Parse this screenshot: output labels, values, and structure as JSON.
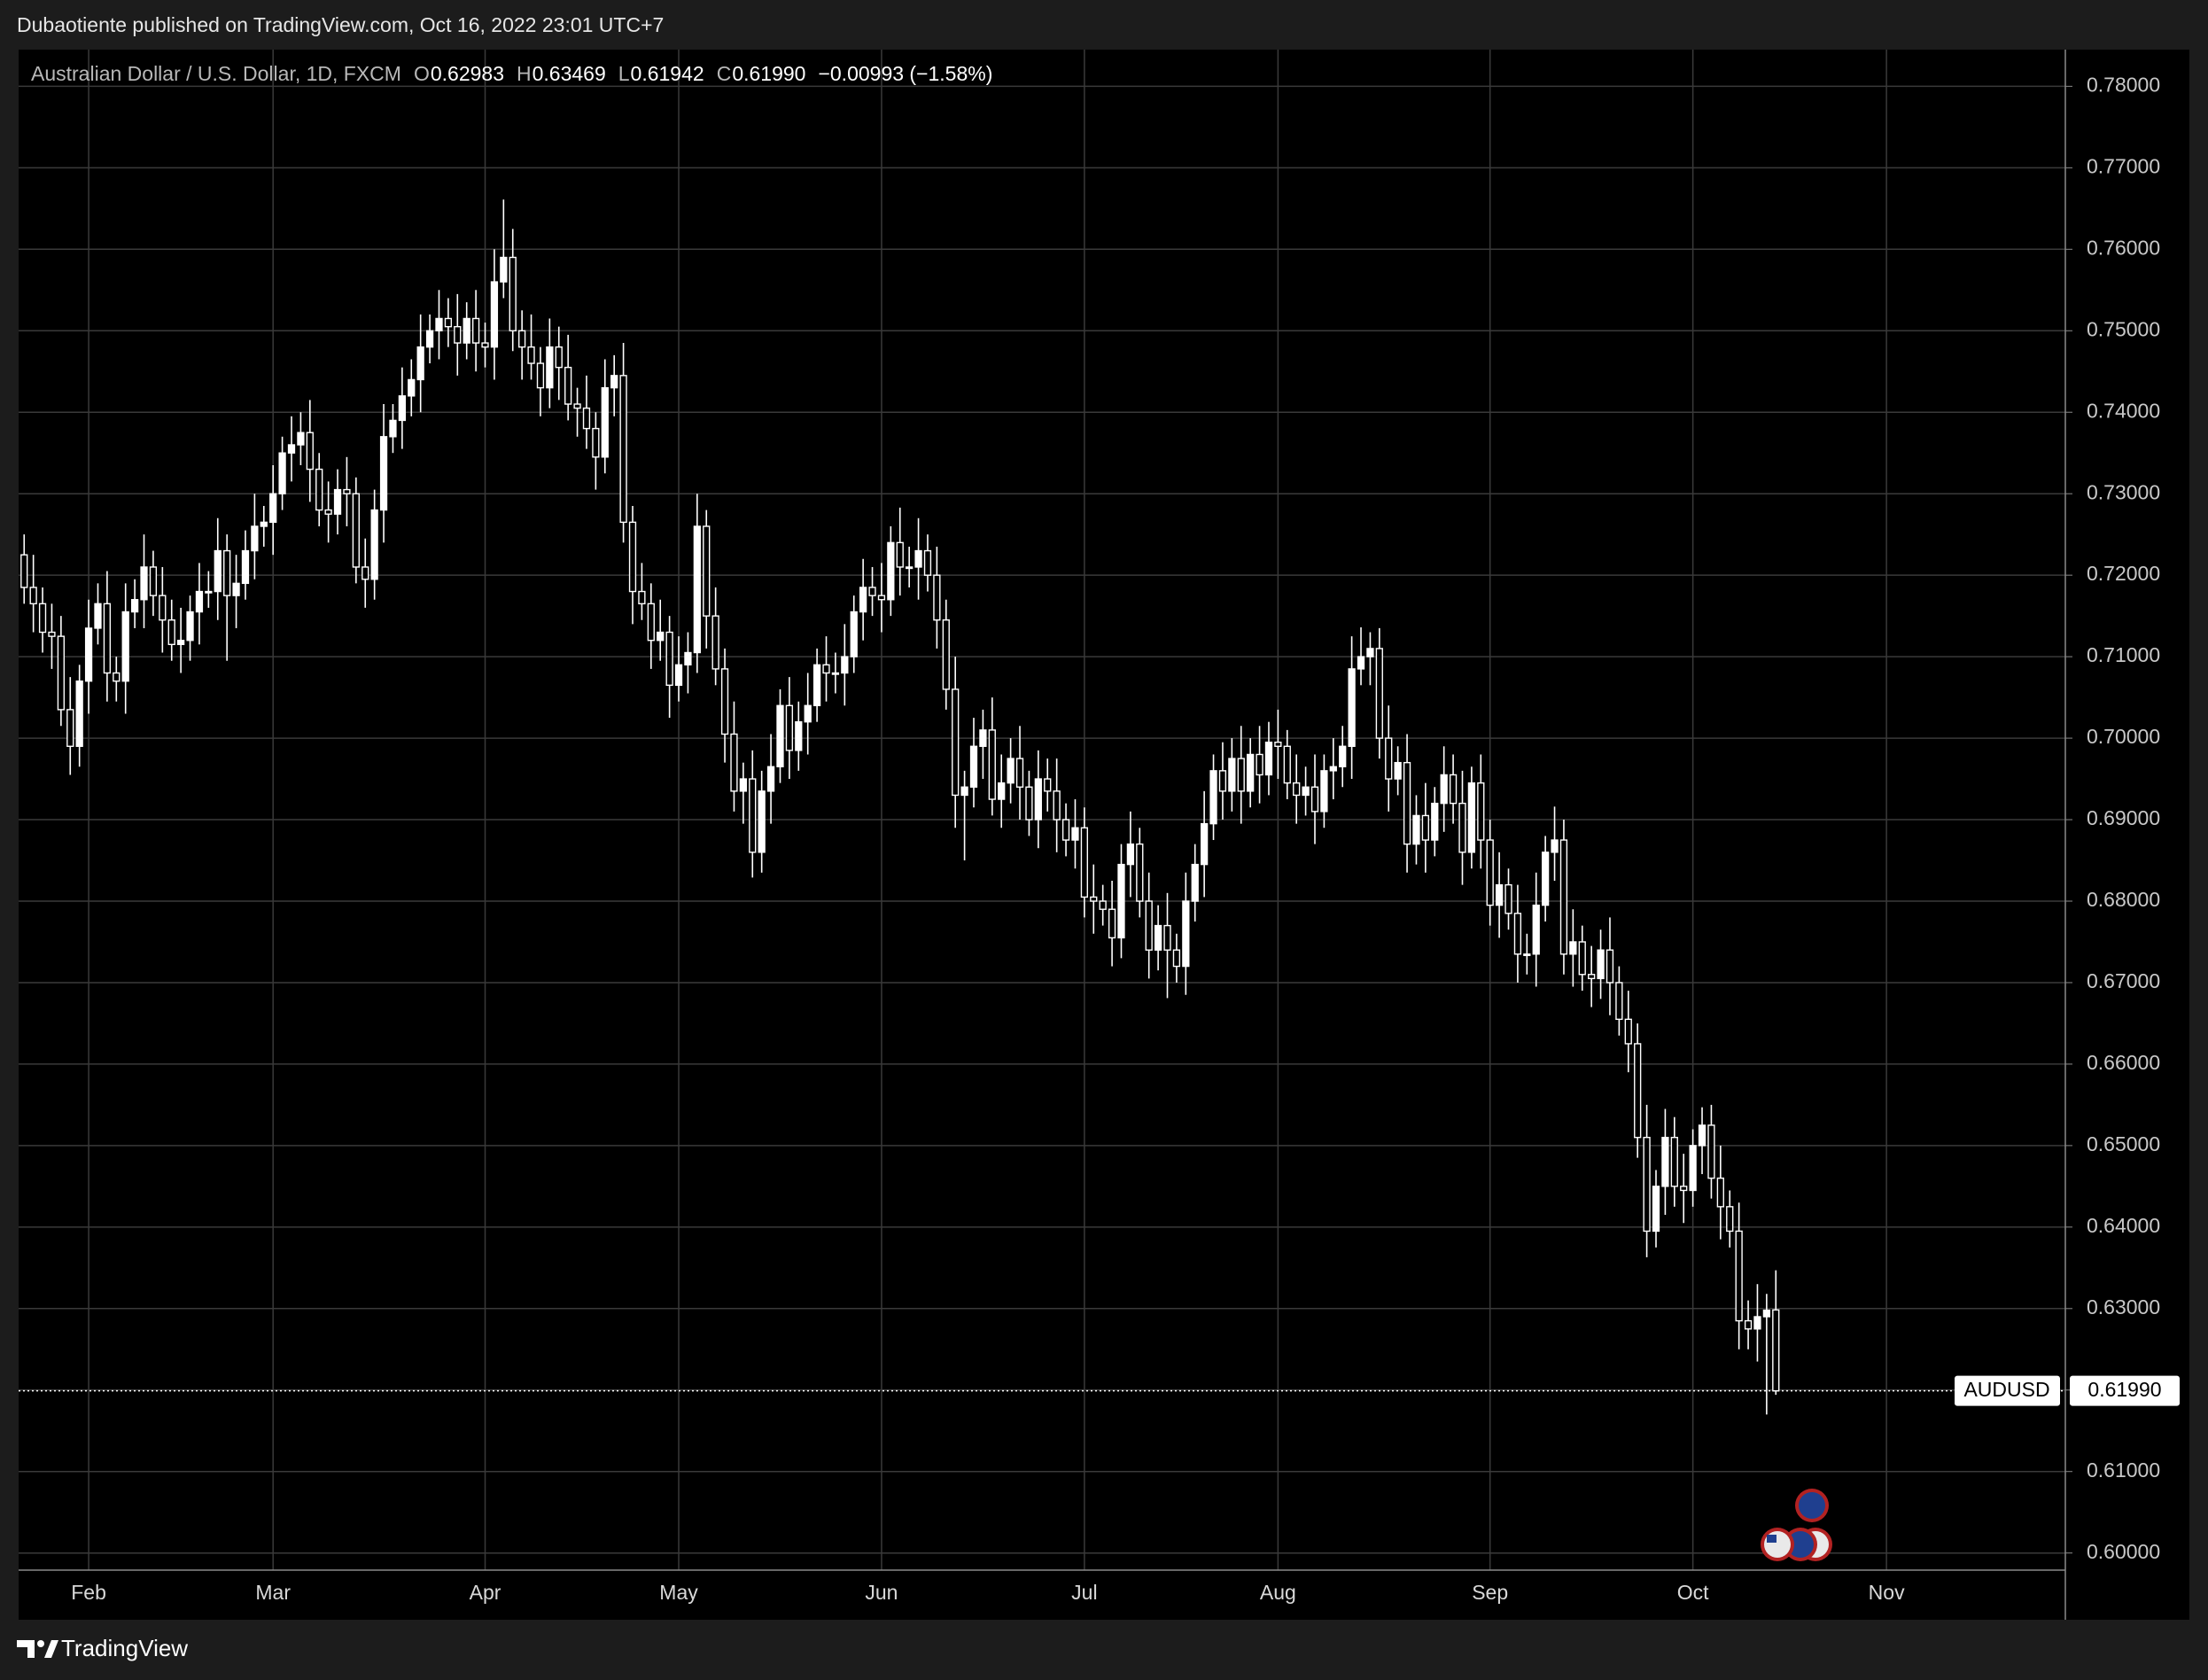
{
  "header": {
    "published": "Dubaotiente published on TradingView.com, Oct 16, 2022 23:01 UTC+7"
  },
  "footer": {
    "brand": "TradingView"
  },
  "chart_data": {
    "type": "candlestick",
    "title": "Australian Dollar / U.S. Dollar, 1D, FXCM",
    "legend": [
      {
        "label": "O",
        "value": "0.62983"
      },
      {
        "label": "H",
        "value": "0.63469"
      },
      {
        "label": "L",
        "value": "0.61942"
      },
      {
        "label": "C",
        "value": "0.61990"
      }
    ],
    "change": "−0.00993 (−1.58%)",
    "last_price": {
      "symbol": "AUDUSD",
      "value": 0.6199,
      "label": "0.61990"
    },
    "up_color": "#ffffff",
    "down_color": "#000000",
    "wick_color": "#ffffff",
    "grid": true,
    "ylim": [
      0.5979,
      0.7845
    ],
    "yticks": [
      {
        "value": 0.6,
        "label": "0.60000"
      },
      {
        "value": 0.61,
        "label": "0.61000"
      },
      {
        "value": 0.62,
        "label": "0.62000"
      },
      {
        "value": 0.63,
        "label": "0.63000"
      },
      {
        "value": 0.64,
        "label": "0.64000"
      },
      {
        "value": 0.65,
        "label": "0.65000"
      },
      {
        "value": 0.66,
        "label": "0.66000"
      },
      {
        "value": 0.67,
        "label": "0.67000"
      },
      {
        "value": 0.68,
        "label": "0.68000"
      },
      {
        "value": 0.69,
        "label": "0.69000"
      },
      {
        "value": 0.7,
        "label": "0.70000"
      },
      {
        "value": 0.71,
        "label": "0.71000"
      },
      {
        "value": 0.72,
        "label": "0.72000"
      },
      {
        "value": 0.73,
        "label": "0.73000"
      },
      {
        "value": 0.74,
        "label": "0.74000"
      },
      {
        "value": 0.75,
        "label": "0.75000"
      },
      {
        "value": 0.76,
        "label": "0.76000"
      },
      {
        "value": 0.77,
        "label": "0.77000"
      },
      {
        "value": 0.78,
        "label": "0.78000"
      }
    ],
    "categories": [
      null,
      null,
      null,
      null,
      null,
      null,
      null,
      "Feb",
      null,
      null,
      null,
      null,
      null,
      null,
      null,
      null,
      null,
      null,
      null,
      null,
      null,
      null,
      null,
      null,
      null,
      null,
      null,
      "Mar",
      null,
      null,
      null,
      null,
      null,
      null,
      null,
      null,
      null,
      null,
      null,
      null,
      null,
      null,
      null,
      null,
      null,
      null,
      null,
      null,
      null,
      null,
      "Apr",
      null,
      null,
      null,
      null,
      null,
      null,
      null,
      null,
      null,
      null,
      null,
      null,
      null,
      null,
      null,
      null,
      null,
      null,
      null,
      null,
      "May",
      null,
      null,
      null,
      null,
      null,
      null,
      null,
      null,
      null,
      null,
      null,
      null,
      null,
      null,
      null,
      null,
      null,
      null,
      null,
      null,
      null,
      "Jun",
      null,
      null,
      null,
      null,
      null,
      null,
      null,
      null,
      null,
      null,
      null,
      null,
      null,
      null,
      null,
      null,
      null,
      null,
      null,
      null,
      null,
      "Jul",
      null,
      null,
      null,
      null,
      null,
      null,
      null,
      null,
      null,
      null,
      null,
      null,
      null,
      null,
      null,
      null,
      null,
      null,
      null,
      null,
      "Aug",
      null,
      null,
      null,
      null,
      null,
      null,
      null,
      null,
      null,
      null,
      null,
      null,
      null,
      null,
      null,
      null,
      null,
      null,
      null,
      null,
      null,
      null,
      "Sep",
      null,
      null,
      null,
      null,
      null,
      null,
      null,
      null,
      null,
      null,
      null,
      null,
      null,
      null,
      null,
      null,
      null,
      null,
      null,
      null,
      null,
      "Oct",
      null,
      null,
      null,
      null,
      null,
      null,
      null,
      null,
      null,
      null,
      null,
      null,
      null,
      null,
      null,
      null,
      null,
      null,
      null,
      null,
      "Nov",
      null,
      null,
      null,
      null,
      null,
      null,
      null,
      null,
      null,
      null,
      null,
      null,
      null,
      null,
      null,
      null,
      null,
      null,
      null
    ],
    "open": [
      0.7225,
      0.7185,
      0.7165,
      0.713,
      0.7125,
      0.7035,
      0.699,
      0.707,
      0.7135,
      0.7165,
      0.708,
      0.707,
      0.7155,
      0.717,
      0.721,
      0.7175,
      0.7145,
      0.7115,
      0.712,
      0.7155,
      0.718,
      0.718,
      0.723,
      0.7175,
      0.719,
      0.723,
      0.726,
      0.7265,
      0.73,
      0.735,
      0.736,
      0.7375,
      0.733,
      0.728,
      0.7275,
      0.7305,
      0.73,
      0.721,
      0.7195,
      0.728,
      0.737,
      0.739,
      0.742,
      0.744,
      0.748,
      0.75,
      0.7515,
      0.7505,
      0.7485,
      0.7515,
      0.7485,
      0.748,
      0.756,
      0.759,
      0.75,
      0.748,
      0.746,
      0.743,
      0.748,
      0.7455,
      0.741,
      0.7405,
      0.738,
      0.7345,
      0.743,
      0.7445,
      0.7265,
      0.718,
      0.7165,
      0.712,
      0.713,
      0.7065,
      0.709,
      0.7105,
      0.726,
      0.715,
      0.7085,
      0.7005,
      0.6935,
      0.695,
      0.686,
      0.6935,
      0.6965,
      0.704,
      0.6985,
      0.702,
      0.704,
      0.709,
      0.708,
      0.708,
      0.71,
      0.7155,
      0.7185,
      0.7175,
      0.717,
      0.724,
      0.721,
      0.721,
      0.723,
      0.72,
      0.7145,
      0.706,
      0.693,
      0.694,
      0.699,
      0.701,
      0.6925,
      0.6945,
      0.6975,
      0.694,
      0.69,
      0.695,
      0.6935,
      0.69,
      0.6875,
      0.689,
      0.6805,
      0.68,
      0.679,
      0.6755,
      0.6845,
      0.687,
      0.68,
      0.674,
      0.677,
      0.674,
      0.672,
      0.68,
      0.6845,
      0.6895,
      0.696,
      0.6935,
      0.6975,
      0.6935,
      0.698,
      0.6955,
      0.6995,
      0.699,
      0.6945,
      0.693,
      0.694,
      0.691,
      0.696,
      0.6965,
      0.699,
      0.7085,
      0.71,
      0.711,
      0.7,
      0.695,
      0.697,
      0.687,
      0.6905,
      0.6875,
      0.692,
      0.6955,
      0.692,
      0.686,
      0.6945,
      0.6875,
      0.6795,
      0.682,
      0.6785,
      0.6735,
      0.6735,
      0.6795,
      0.686,
      0.6875,
      0.6735,
      0.675,
      0.671,
      0.6705,
      0.674,
      0.67,
      0.6655,
      0.6625,
      0.651,
      0.6395,
      0.645,
      0.651,
      0.645,
      0.6445,
      0.65,
      0.6525,
      0.646,
      0.6425,
      0.6395,
      0.6285,
      0.6275,
      0.629,
      0.62983,
      null,
      null,
      null,
      null,
      null,
      null,
      null,
      null,
      null,
      null,
      null,
      null,
      null,
      null,
      null,
      null,
      null,
      null,
      null,
      null,
      null,
      null,
      null,
      null,
      null,
      null,
      null,
      null,
      null,
      null,
      null
    ],
    "high": [
      0.725,
      0.7225,
      0.7185,
      0.7165,
      0.715,
      0.7075,
      0.709,
      0.717,
      0.719,
      0.7205,
      0.71,
      0.719,
      0.7195,
      0.725,
      0.723,
      0.721,
      0.717,
      0.716,
      0.7175,
      0.7215,
      0.7205,
      0.727,
      0.725,
      0.7225,
      0.7255,
      0.73,
      0.7285,
      0.7335,
      0.737,
      0.7395,
      0.74,
      0.7415,
      0.735,
      0.7315,
      0.733,
      0.7345,
      0.732,
      0.7245,
      0.7305,
      0.741,
      0.741,
      0.7455,
      0.7465,
      0.752,
      0.752,
      0.755,
      0.754,
      0.7545,
      0.7535,
      0.755,
      0.751,
      0.76,
      0.7661,
      0.7625,
      0.7525,
      0.752,
      0.748,
      0.7515,
      0.7505,
      0.7495,
      0.743,
      0.7445,
      0.74,
      0.7465,
      0.747,
      0.7485,
      0.7285,
      0.7215,
      0.719,
      0.717,
      0.715,
      0.7125,
      0.713,
      0.73,
      0.728,
      0.7185,
      0.711,
      0.7045,
      0.697,
      0.6985,
      0.696,
      0.7005,
      0.706,
      0.7075,
      0.7045,
      0.708,
      0.711,
      0.7125,
      0.7105,
      0.714,
      0.7175,
      0.722,
      0.721,
      0.7215,
      0.726,
      0.7283,
      0.7235,
      0.727,
      0.725,
      0.7235,
      0.717,
      0.71,
      0.696,
      0.7025,
      0.7035,
      0.705,
      0.698,
      0.7,
      0.7015,
      0.696,
      0.6985,
      0.6975,
      0.6975,
      0.692,
      0.6925,
      0.6915,
      0.6845,
      0.682,
      0.6825,
      0.687,
      0.691,
      0.689,
      0.6835,
      0.6795,
      0.681,
      0.676,
      0.6835,
      0.687,
      0.6935,
      0.698,
      0.6995,
      0.7,
      0.7015,
      0.7,
      0.7015,
      0.702,
      0.7035,
      0.701,
      0.698,
      0.6965,
      0.698,
      0.698,
      0.7,
      0.7015,
      0.7125,
      0.7136,
      0.713,
      0.7135,
      0.704,
      0.699,
      0.7005,
      0.693,
      0.6945,
      0.694,
      0.699,
      0.698,
      0.696,
      0.6965,
      0.698,
      0.69,
      0.686,
      0.684,
      0.682,
      0.676,
      0.6835,
      0.688,
      0.6916,
      0.69,
      0.679,
      0.677,
      0.6745,
      0.6765,
      0.678,
      0.672,
      0.669,
      0.665,
      0.655,
      0.647,
      0.6545,
      0.6535,
      0.649,
      0.652,
      0.6547,
      0.655,
      0.65,
      0.6445,
      0.643,
      0.631,
      0.633,
      0.6318,
      0.63469,
      null,
      null,
      null,
      null,
      null,
      null,
      null,
      null,
      null,
      null,
      null,
      null,
      null,
      null,
      null,
      null,
      null,
      null,
      null,
      null,
      null,
      null,
      null,
      null,
      null,
      null,
      null,
      null,
      null,
      null,
      null
    ],
    "low": [
      0.7165,
      0.713,
      0.7105,
      0.7085,
      0.7015,
      0.6955,
      0.6965,
      0.703,
      0.7115,
      0.7045,
      0.7045,
      0.703,
      0.7135,
      0.7135,
      0.715,
      0.7105,
      0.7095,
      0.708,
      0.7095,
      0.7115,
      0.716,
      0.7145,
      0.7095,
      0.7135,
      0.717,
      0.7195,
      0.7235,
      0.7225,
      0.728,
      0.7315,
      0.7335,
      0.729,
      0.726,
      0.724,
      0.725,
      0.726,
      0.719,
      0.716,
      0.717,
      0.724,
      0.735,
      0.7355,
      0.7395,
      0.74,
      0.746,
      0.7465,
      0.748,
      0.7445,
      0.7465,
      0.745,
      0.7455,
      0.744,
      0.754,
      0.7475,
      0.744,
      0.744,
      0.7395,
      0.7405,
      0.7415,
      0.739,
      0.737,
      0.7355,
      0.7305,
      0.7325,
      0.7395,
      0.724,
      0.714,
      0.7145,
      0.7085,
      0.7095,
      0.7025,
      0.7045,
      0.7055,
      0.708,
      0.711,
      0.7065,
      0.697,
      0.691,
      0.6895,
      0.6829,
      0.6835,
      0.6895,
      0.6945,
      0.695,
      0.696,
      0.698,
      0.702,
      0.7045,
      0.7055,
      0.704,
      0.708,
      0.712,
      0.715,
      0.713,
      0.715,
      0.7175,
      0.7185,
      0.717,
      0.718,
      0.711,
      0.7035,
      0.689,
      0.685,
      0.6915,
      0.695,
      0.6905,
      0.689,
      0.692,
      0.69,
      0.688,
      0.6865,
      0.691,
      0.686,
      0.6855,
      0.684,
      0.678,
      0.676,
      0.677,
      0.672,
      0.673,
      0.6805,
      0.678,
      0.6705,
      0.6715,
      0.6681,
      0.67,
      0.6685,
      0.6775,
      0.6805,
      0.6875,
      0.69,
      0.691,
      0.6895,
      0.6915,
      0.692,
      0.693,
      0.695,
      0.6925,
      0.6895,
      0.6905,
      0.687,
      0.689,
      0.6925,
      0.694,
      0.695,
      0.7065,
      0.7065,
      0.6975,
      0.691,
      0.693,
      0.6835,
      0.6845,
      0.6835,
      0.6855,
      0.6885,
      0.6895,
      0.682,
      0.684,
      0.684,
      0.677,
      0.6755,
      0.6765,
      0.67,
      0.671,
      0.6695,
      0.6775,
      0.6825,
      0.671,
      0.6695,
      0.669,
      0.667,
      0.668,
      0.666,
      0.6635,
      0.659,
      0.6485,
      0.6363,
      0.6375,
      0.6415,
      0.6425,
      0.6405,
      0.6425,
      0.6465,
      0.6435,
      0.6385,
      0.6375,
      0.625,
      0.625,
      0.6235,
      0.617,
      0.61942,
      null,
      null,
      null,
      null,
      null,
      null,
      null,
      null,
      null,
      null,
      null,
      null,
      null,
      null,
      null,
      null,
      null,
      null,
      null,
      null,
      null,
      null,
      null,
      null,
      null,
      null,
      null,
      null,
      null,
      null,
      null
    ],
    "close": [
      0.7185,
      0.7165,
      0.713,
      0.7125,
      0.7035,
      0.699,
      0.707,
      0.7135,
      0.7165,
      0.708,
      0.707,
      0.7155,
      0.717,
      0.721,
      0.7175,
      0.7145,
      0.7115,
      0.712,
      0.7155,
      0.718,
      0.718,
      0.723,
      0.7175,
      0.719,
      0.723,
      0.726,
      0.7265,
      0.73,
      0.735,
      0.736,
      0.7375,
      0.733,
      0.728,
      0.7275,
      0.7305,
      0.73,
      0.721,
      0.7195,
      0.728,
      0.737,
      0.739,
      0.742,
      0.744,
      0.748,
      0.75,
      0.7515,
      0.7505,
      0.7485,
      0.7515,
      0.7485,
      0.748,
      0.756,
      0.759,
      0.75,
      0.748,
      0.746,
      0.743,
      0.748,
      0.7455,
      0.741,
      0.7405,
      0.738,
      0.7345,
      0.743,
      0.7445,
      0.7265,
      0.718,
      0.7165,
      0.712,
      0.713,
      0.7065,
      0.709,
      0.7105,
      0.726,
      0.715,
      0.7085,
      0.7005,
      0.6935,
      0.695,
      0.686,
      0.6935,
      0.6965,
      0.704,
      0.6985,
      0.702,
      0.704,
      0.709,
      0.708,
      0.708,
      0.71,
      0.7155,
      0.7185,
      0.7175,
      0.717,
      0.724,
      0.721,
      0.721,
      0.723,
      0.72,
      0.7145,
      0.706,
      0.693,
      0.694,
      0.699,
      0.701,
      0.6925,
      0.6945,
      0.6975,
      0.694,
      0.69,
      0.695,
      0.6935,
      0.69,
      0.6875,
      0.689,
      0.6805,
      0.68,
      0.679,
      0.6755,
      0.6845,
      0.687,
      0.68,
      0.674,
      0.677,
      0.674,
      0.672,
      0.68,
      0.6845,
      0.6895,
      0.696,
      0.6935,
      0.6975,
      0.6935,
      0.698,
      0.6955,
      0.6995,
      0.699,
      0.6945,
      0.693,
      0.694,
      0.691,
      0.696,
      0.6965,
      0.699,
      0.7085,
      0.71,
      0.711,
      0.7,
      0.695,
      0.697,
      0.687,
      0.6905,
      0.6875,
      0.692,
      0.6955,
      0.692,
      0.686,
      0.6945,
      0.6875,
      0.6795,
      0.682,
      0.6785,
      0.6735,
      0.6735,
      0.6795,
      0.686,
      0.6875,
      0.6735,
      0.675,
      0.671,
      0.6705,
      0.674,
      0.67,
      0.6655,
      0.6625,
      0.651,
      0.6395,
      0.645,
      0.651,
      0.645,
      0.6445,
      0.65,
      0.6525,
      0.646,
      0.6425,
      0.6395,
      0.6285,
      0.6275,
      0.629,
      0.6298,
      0.6199,
      null,
      null,
      null,
      null,
      null,
      null,
      null,
      null,
      null,
      null,
      null,
      null,
      null,
      null,
      null,
      null,
      null,
      null,
      null,
      null,
      null,
      null,
      null,
      null,
      null,
      null,
      null,
      null,
      null,
      null,
      null
    ]
  }
}
